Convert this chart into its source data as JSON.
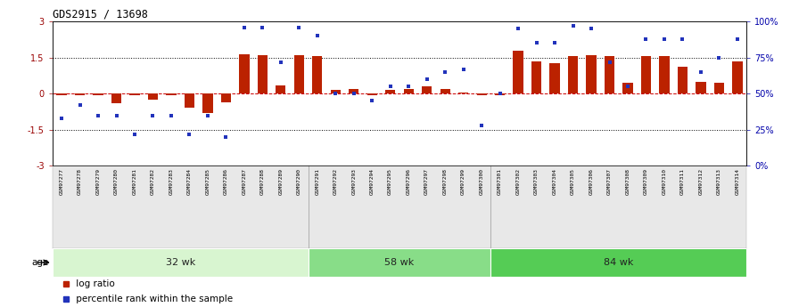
{
  "title": "GDS2915 / 13698",
  "samples": [
    "GSM97277",
    "GSM97278",
    "GSM97279",
    "GSM97280",
    "GSM97281",
    "GSM97282",
    "GSM97283",
    "GSM97284",
    "GSM97285",
    "GSM97286",
    "GSM97287",
    "GSM97288",
    "GSM97289",
    "GSM97290",
    "GSM97291",
    "GSM97292",
    "GSM97293",
    "GSM97294",
    "GSM97295",
    "GSM97296",
    "GSM97297",
    "GSM97298",
    "GSM97299",
    "GSM97300",
    "GSM97301",
    "GSM97302",
    "GSM97303",
    "GSM97304",
    "GSM97305",
    "GSM97306",
    "GSM97307",
    "GSM97308",
    "GSM97309",
    "GSM97310",
    "GSM97311",
    "GSM97312",
    "GSM97313",
    "GSM97314"
  ],
  "log_ratio": [
    -0.05,
    -0.08,
    -0.05,
    -0.4,
    -0.05,
    -0.25,
    -0.05,
    -0.6,
    -0.8,
    -0.35,
    1.65,
    1.6,
    0.35,
    1.6,
    1.58,
    0.15,
    0.2,
    -0.05,
    0.15,
    0.2,
    0.3,
    0.2,
    0.05,
    -0.08,
    -0.08,
    1.8,
    1.35,
    1.25,
    1.55,
    1.6,
    1.55,
    0.45,
    1.55,
    1.55,
    1.1,
    0.5,
    0.45,
    1.35
  ],
  "percentile": [
    33,
    42,
    35,
    35,
    22,
    35,
    35,
    22,
    35,
    20,
    96,
    96,
    72,
    96,
    90,
    50,
    50,
    45,
    55,
    55,
    60,
    65,
    67,
    28,
    50,
    95,
    85,
    85,
    97,
    95,
    72,
    55,
    88,
    88,
    88,
    65,
    75,
    88
  ],
  "groups": [
    {
      "label": "32 wk",
      "start": 0,
      "end": 13,
      "color": "#d8f5d0"
    },
    {
      "label": "58 wk",
      "start": 14,
      "end": 23,
      "color": "#88dd88"
    },
    {
      "label": "84 wk",
      "start": 24,
      "end": 37,
      "color": "#55cc55"
    }
  ],
  "bar_color": "#bb2200",
  "dot_color": "#2233bb",
  "background_color": "#ffffff",
  "age_label": "age",
  "left_ylim": [
    -3,
    3
  ],
  "right_ylim": [
    0,
    100
  ],
  "left_yticks": [
    -3,
    -1.5,
    0,
    1.5,
    3
  ],
  "right_yticks": [
    0,
    25,
    50,
    75,
    100
  ],
  "right_yticklabels": [
    "0%",
    "25%",
    "50%",
    "75%",
    "100%"
  ]
}
